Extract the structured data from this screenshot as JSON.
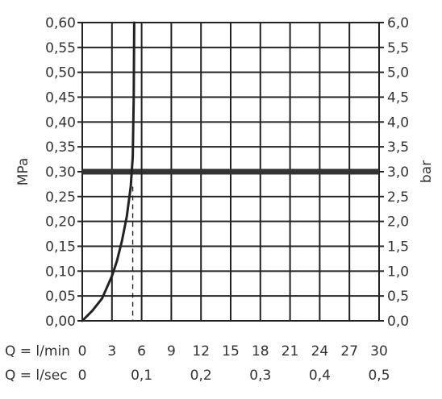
{
  "chart_data": {
    "type": "line",
    "ylabel_left": "MPa",
    "ylabel_right": "bar",
    "x_primary_label": "Q = l/min",
    "x_secondary_label": "Q = l/sec",
    "x_ticks": [
      "0",
      "3",
      "6",
      "9",
      "12",
      "15",
      "18",
      "21",
      "24",
      "27",
      "30"
    ],
    "x_secondary_ticks": [
      {
        "value": 0,
        "label": "0"
      },
      {
        "value": 6,
        "label": "0,1"
      },
      {
        "value": 12,
        "label": "0,2"
      },
      {
        "value": 18,
        "label": "0,3"
      },
      {
        "value": 24,
        "label": "0,4"
      },
      {
        "value": 30,
        "label": "0,5"
      }
    ],
    "y_ticks_left": [
      "0,00",
      "0,05",
      "0,10",
      "0,15",
      "0,20",
      "0,25",
      "0,30",
      "0,35",
      "0,40",
      "0,45",
      "0,50",
      "0,55",
      "0,60"
    ],
    "y_ticks_right": [
      "0,0",
      "0,5",
      "1,0",
      "1,5",
      "2,0",
      "2,5",
      "3,0",
      "3,5",
      "4,0",
      "4,5",
      "5,0",
      "5,5",
      "6,0"
    ],
    "xlim": [
      0,
      30
    ],
    "ylim": [
      0,
      0.6
    ],
    "grid": true,
    "series": [
      {
        "x": [
          0,
          1,
          2,
          3,
          3.5,
          4,
          4.5,
          4.9,
          5.1,
          5.2,
          5.25
        ],
        "y": [
          0,
          0.02,
          0.045,
          0.09,
          0.12,
          0.16,
          0.21,
          0.27,
          0.33,
          0.45,
          0.6
        ]
      }
    ],
    "reference_lines": {
      "horizontal_bold_y": 0.3,
      "vertical_solid_x": 6,
      "vertical_dashed_x": 5.1,
      "dashed_from_y": 0.0,
      "dashed_to_y": 0.27
    }
  }
}
